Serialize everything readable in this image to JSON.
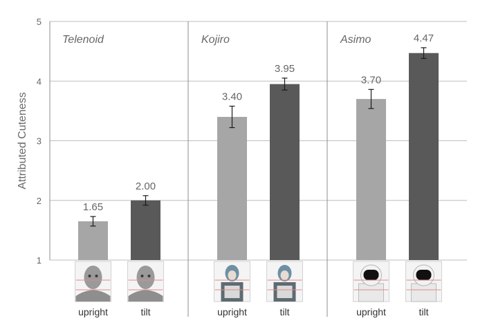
{
  "chart_data": {
    "type": "bar",
    "ylabel": "Attributed Cuteness",
    "ylim": [
      1,
      5
    ],
    "yticks": [
      1,
      2,
      3,
      4,
      5
    ],
    "grid": true,
    "groups": [
      {
        "title": "Telenoid",
        "robot": "telenoid",
        "bars": [
          {
            "condition": "upright",
            "value": 1.65,
            "value_label": "1.65",
            "error": 0.08,
            "color": "#a6a6a6"
          },
          {
            "condition": "tilt",
            "value": 2.0,
            "value_label": "2.00",
            "error": 0.08,
            "color": "#595959"
          }
        ]
      },
      {
        "title": "Kojiro",
        "robot": "kojiro",
        "bars": [
          {
            "condition": "upright",
            "value": 3.4,
            "value_label": "3.40",
            "error": 0.18,
            "color": "#a6a6a6"
          },
          {
            "condition": "tilt",
            "value": 3.95,
            "value_label": "3.95",
            "error": 0.1,
            "color": "#595959"
          }
        ]
      },
      {
        "title": "Asimo",
        "robot": "asimo",
        "bars": [
          {
            "condition": "upright",
            "value": 3.7,
            "value_label": "3.70",
            "error": 0.16,
            "color": "#a6a6a6"
          },
          {
            "condition": "tilt",
            "value": 4.47,
            "value_label": "4.47",
            "error": 0.09,
            "color": "#595959"
          }
        ]
      }
    ]
  }
}
